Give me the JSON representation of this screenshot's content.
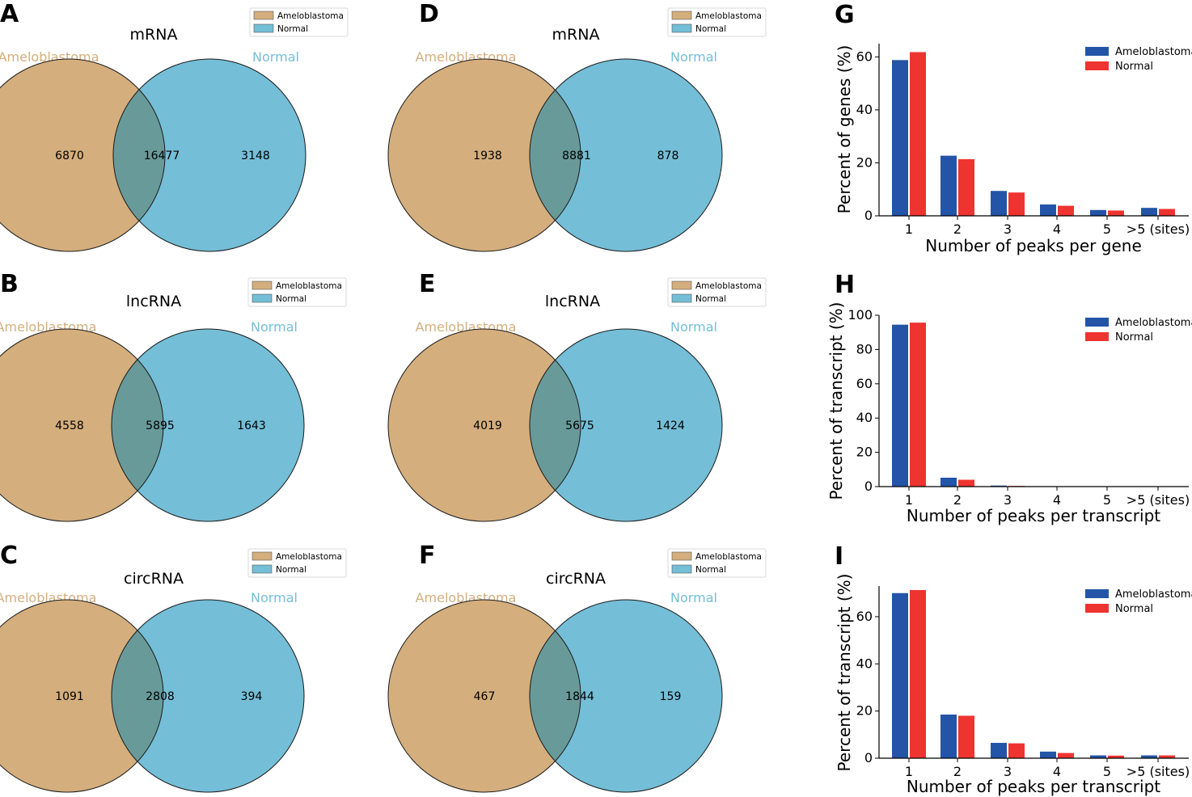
{
  "colors": {
    "ameloblastoma_fill": "#d4ae7d",
    "normal_fill": "#74bed7",
    "overlap_fill": "#699a9a",
    "ameloblastoma_text": "#d4ae7d",
    "normal_text": "#74bed7",
    "bar_ameloblastoma": "#2354a8",
    "bar_normal": "#ee3430"
  },
  "chart_data": [
    {
      "type": "venn",
      "panel": "A",
      "title": "mRNA",
      "sets": [
        "Ameloblastoma",
        "Normal"
      ],
      "legend": [
        "Ameloblastoma",
        "Normal"
      ],
      "counts": {
        "left_only": "6870",
        "both": "16477",
        "right_only": "3148"
      }
    },
    {
      "type": "venn",
      "panel": "B",
      "title": "lncRNA",
      "sets": [
        "Ameloblastoma",
        "Normal"
      ],
      "legend": [
        "Ameloblastoma",
        "Normal"
      ],
      "counts": {
        "left_only": "4558",
        "both": "5895",
        "right_only": "1643"
      }
    },
    {
      "type": "venn",
      "panel": "C",
      "title": "circRNA",
      "sets": [
        "Ameloblastoma",
        "Normal"
      ],
      "legend": [
        "Ameloblastoma",
        "Normal"
      ],
      "counts": {
        "left_only": "1091",
        "both": "2808",
        "right_only": "394"
      }
    },
    {
      "type": "venn",
      "panel": "D",
      "title": "mRNA",
      "sets": [
        "Ameloblastoma",
        "Normal"
      ],
      "legend": [
        "Ameloblastoma",
        "Normal"
      ],
      "counts": {
        "left_only": "1938",
        "both": "8881",
        "right_only": "878"
      }
    },
    {
      "type": "venn",
      "panel": "E",
      "title": "lncRNA",
      "sets": [
        "Ameloblastoma",
        "Normal"
      ],
      "legend": [
        "Ameloblastoma",
        "Normal"
      ],
      "counts": {
        "left_only": "4019",
        "both": "5675",
        "right_only": "1424"
      }
    },
    {
      "type": "venn",
      "panel": "F",
      "title": "circRNA",
      "sets": [
        "Ameloblastoma",
        "Normal"
      ],
      "legend": [
        "Ameloblastoma",
        "Normal"
      ],
      "counts": {
        "left_only": "467",
        "both": "1844",
        "right_only": "159"
      }
    },
    {
      "type": "bar",
      "panel": "G",
      "title": "",
      "xlabel": "Number of peaks per gene",
      "ylabel": "Percent of genes (%)",
      "categories": [
        "1",
        "2",
        "3",
        "4",
        "5",
        ">5 (sites)"
      ],
      "ylim": [
        0,
        65
      ],
      "yticks": [
        0,
        20,
        40,
        60
      ],
      "series": [
        {
          "name": "Ameloblastoma",
          "values": [
            58.8,
            22.7,
            9.4,
            4.3,
            2.2,
            3.0
          ]
        },
        {
          "name": "Normal",
          "values": [
            61.8,
            21.4,
            8.8,
            3.8,
            2.0,
            2.6
          ]
        }
      ]
    },
    {
      "type": "bar",
      "panel": "H",
      "title": "",
      "xlabel": "Number of peaks per transcript",
      "ylabel": "Percent of transcript (%)",
      "categories": [
        "1",
        "2",
        "3",
        "4",
        "5",
        ">5 (sites)"
      ],
      "ylim": [
        0,
        100
      ],
      "yticks": [
        0,
        20,
        40,
        60,
        80,
        100
      ],
      "series": [
        {
          "name": "Ameloblastoma",
          "values": [
            94.5,
            5.2,
            0.6,
            0.2,
            0.1,
            0.1
          ]
        },
        {
          "name": "Normal",
          "values": [
            95.7,
            4.0,
            0.4,
            0.2,
            0.1,
            0.1
          ]
        }
      ]
    },
    {
      "type": "bar",
      "panel": "I",
      "title": "",
      "xlabel": "Number of peaks per transcript",
      "ylabel": "Percent of transcript (%)",
      "categories": [
        "1",
        "2",
        "3",
        "4",
        "5",
        ">5 (sites)"
      ],
      "ylim": [
        0,
        73
      ],
      "yticks": [
        0,
        20,
        40,
        60
      ],
      "series": [
        {
          "name": "Ameloblastoma",
          "values": [
            70.0,
            18.5,
            6.5,
            2.8,
            1.2,
            1.2
          ]
        },
        {
          "name": "Normal",
          "values": [
            71.3,
            18.0,
            6.3,
            2.2,
            1.1,
            1.2
          ]
        }
      ]
    }
  ]
}
